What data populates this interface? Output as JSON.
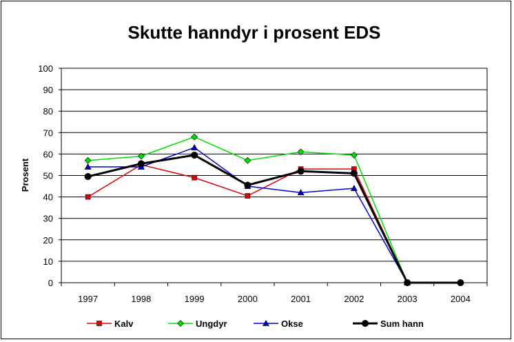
{
  "chart_data": {
    "type": "line",
    "title": "Skutte hanndyr i prosent EDS",
    "xlabel": "",
    "ylabel": "Prosent",
    "ylim": [
      0,
      100
    ],
    "yticks": [
      "0",
      "10",
      "20",
      "30",
      "40",
      "50",
      "60",
      "70",
      "80",
      "90",
      "100"
    ],
    "categories": [
      "1997",
      "1998",
      "1999",
      "2000",
      "2001",
      "2002",
      "2003",
      "2004"
    ],
    "grid": true,
    "legend_position": "bottom",
    "series": [
      {
        "name": "Kalv",
        "color": "#dd0000",
        "marker": "square",
        "values": [
          40,
          55,
          49,
          40.5,
          53,
          53,
          0,
          null
        ]
      },
      {
        "name": "Ungdyr",
        "color": "#00dd00",
        "marker": "diamond",
        "values": [
          57,
          59,
          68,
          57,
          61,
          59.5,
          0,
          null
        ]
      },
      {
        "name": "Okse",
        "color": "#0000cc",
        "marker": "triangle",
        "values": [
          54,
          54,
          63,
          45,
          42,
          44,
          0,
          null
        ]
      },
      {
        "name": "Sum hann",
        "color": "#000000",
        "marker": "circle",
        "values": [
          49.5,
          55.5,
          59.5,
          45.5,
          52,
          51,
          0,
          0
        ]
      }
    ]
  }
}
